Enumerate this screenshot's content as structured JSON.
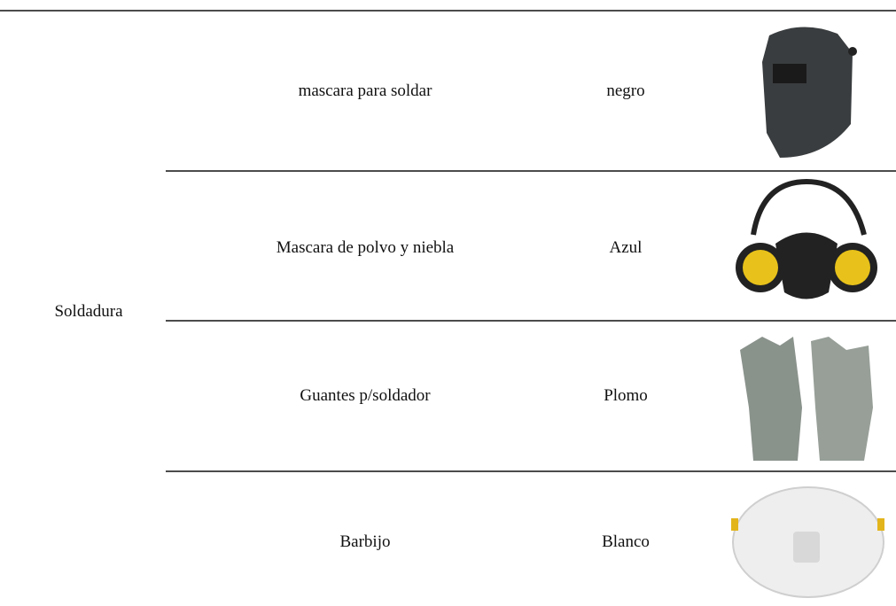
{
  "table": {
    "group": "Soldadura",
    "rows": [
      {
        "item": "mascara para soldar",
        "color": "negro"
      },
      {
        "item": "Mascara de polvo y niebla",
        "color": "Azul"
      },
      {
        "item": "Guantes p/soldador",
        "color": "Plomo"
      },
      {
        "item": "Barbijo",
        "color": "Blanco"
      }
    ]
  }
}
